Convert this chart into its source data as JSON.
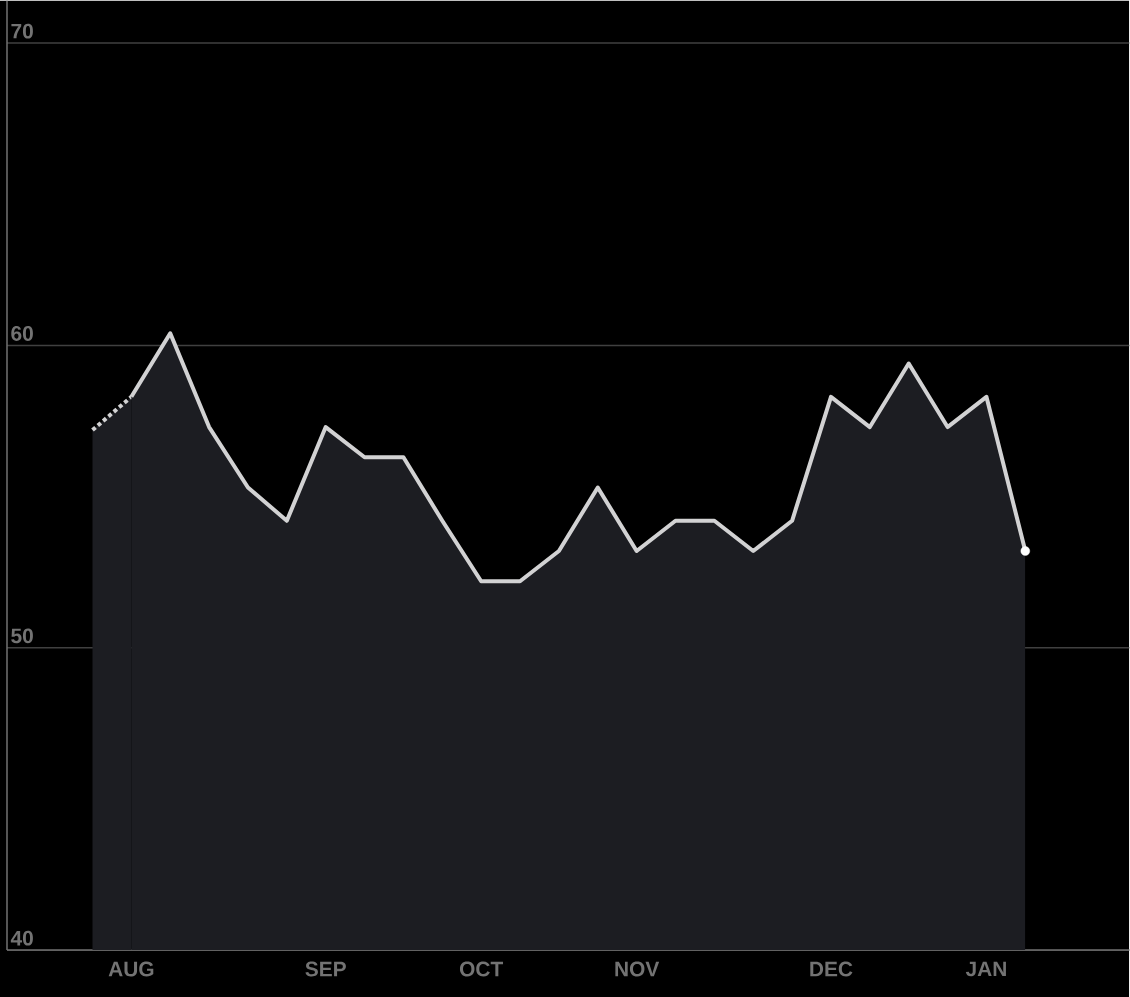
{
  "chart_data": {
    "type": "area",
    "categories": [
      null,
      "AUG",
      null,
      null,
      null,
      null,
      "SEP",
      null,
      null,
      null,
      "OCT",
      null,
      null,
      null,
      "NOV",
      null,
      null,
      null,
      null,
      "DEC",
      null,
      null,
      null,
      "JAN",
      null
    ],
    "ylim": [
      40,
      71.4
    ],
    "yticks": [
      40,
      50,
      60,
      70
    ],
    "grid": "y",
    "series": [
      {
        "color": "#1c1d22",
        "line_style": "dotted",
        "values": [
          57.2,
          58.3,
          null,
          null,
          null,
          null,
          null,
          null,
          null,
          null,
          null,
          null,
          null,
          null,
          null,
          null,
          null,
          null,
          null,
          null,
          null,
          null,
          null,
          null,
          null
        ]
      },
      {
        "color": "#1c1d22",
        "line_style": "solid",
        "values": [
          null,
          58.3,
          60.4,
          57.3,
          55.3,
          54.2,
          57.3,
          56.3,
          56.3,
          54.2,
          52.2,
          52.2,
          53.2,
          55.3,
          53.2,
          54.2,
          54.2,
          53.2,
          54.2,
          58.3,
          57.3,
          59.4,
          57.3,
          58.3,
          53.2
        ]
      },
      {
        "type": "scatter",
        "color": "#ffffff",
        "marker": "circle",
        "values": [
          null,
          null,
          null,
          null,
          null,
          null,
          null,
          null,
          null,
          null,
          null,
          null,
          null,
          null,
          null,
          null,
          null,
          null,
          null,
          null,
          null,
          null,
          null,
          null,
          53.2
        ]
      }
    ]
  }
}
